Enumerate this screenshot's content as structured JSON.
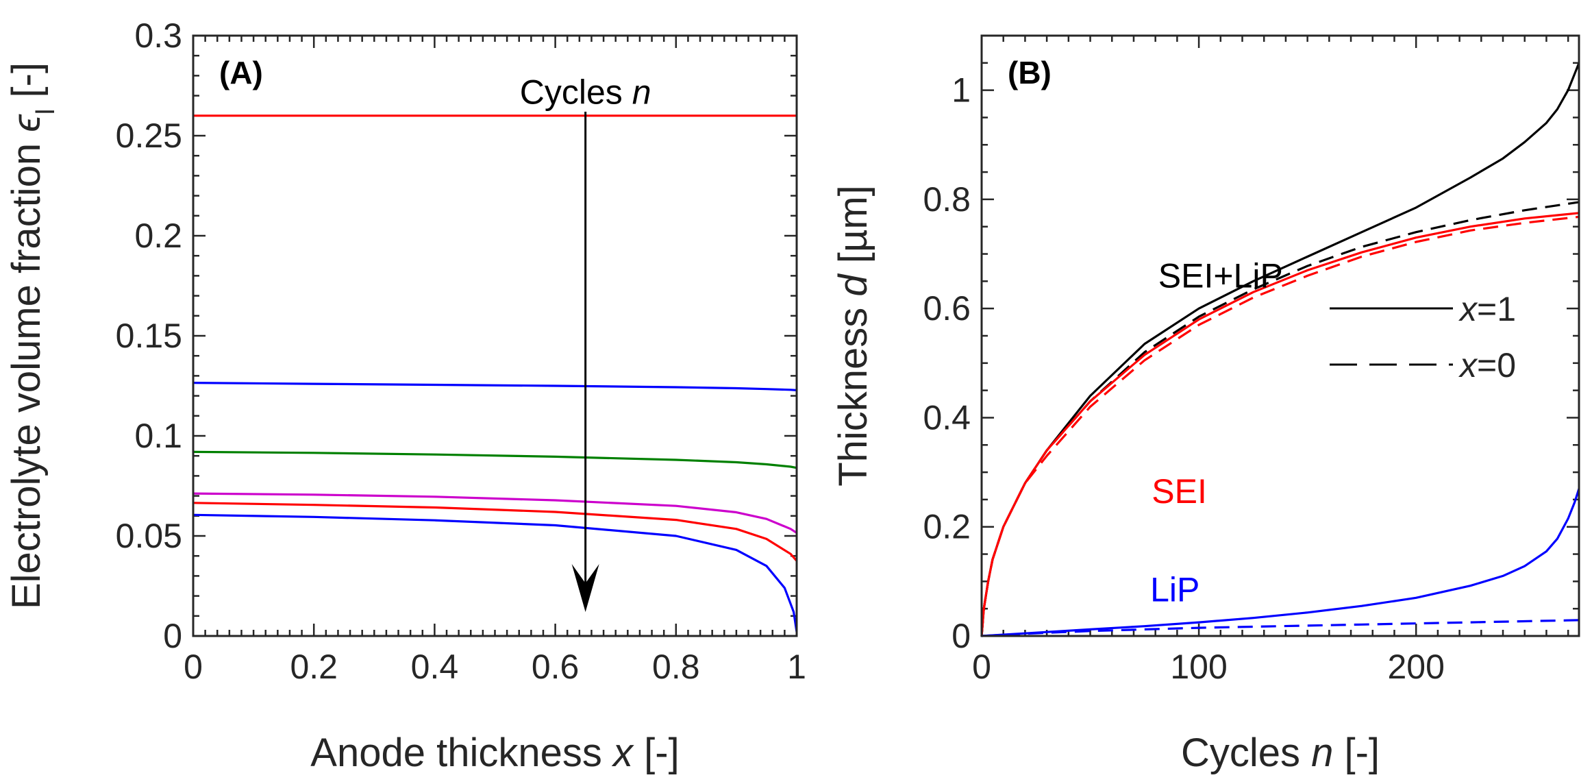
{
  "chart_data": [
    {
      "type": "line",
      "panel": "(A)",
      "xlabel_main": "Anode thickness",
      "xlabel_var": "x",
      "xlabel_unit": "[-]",
      "ylabel_main": "Electrolyte volume fraction",
      "ylabel_var": "ϵ",
      "ylabel_sub": "l",
      "ylabel_unit": "[-]",
      "xlim": [
        0,
        1
      ],
      "ylim": [
        0,
        0.3
      ],
      "xticks": [
        0,
        0.2,
        0.4,
        0.6,
        0.8,
        1
      ],
      "xtick_labels": [
        "0",
        "0.2",
        "0.4",
        "0.6",
        "0.8",
        "1"
      ],
      "yticks": [
        0,
        0.05,
        0.1,
        0.15,
        0.2,
        0.25,
        0.3
      ],
      "ytick_labels": [
        "0",
        "0.05",
        "0.1",
        "0.15",
        "0.2",
        "0.25",
        "0.3"
      ],
      "annotation": {
        "text": "Cycles",
        "var": "n",
        "arrow_x": 0.65,
        "arrow_from_y": 0.262,
        "arrow_to_y": 0.012,
        "label_x": 0.65,
        "label_y": 0.27
      },
      "series": [
        {
          "name": "curve-1",
          "color": "#ff0000",
          "x": [
            0,
            0.2,
            0.4,
            0.6,
            0.8,
            0.9,
            0.95,
            0.99,
            1.0
          ],
          "y": [
            0.26,
            0.26,
            0.26,
            0.26,
            0.26,
            0.26,
            0.26,
            0.26,
            0.26
          ]
        },
        {
          "name": "curve-2",
          "color": "#0000ff",
          "x": [
            0,
            0.2,
            0.4,
            0.6,
            0.8,
            0.9,
            0.95,
            0.99,
            1.0
          ],
          "y": [
            0.1265,
            0.126,
            0.1255,
            0.125,
            0.1243,
            0.1238,
            0.1234,
            0.123,
            0.1228
          ]
        },
        {
          "name": "curve-3",
          "color": "#008000",
          "x": [
            0,
            0.2,
            0.4,
            0.6,
            0.8,
            0.9,
            0.95,
            0.99,
            1.0
          ],
          "y": [
            0.092,
            0.0915,
            0.0907,
            0.0896,
            0.088,
            0.0868,
            0.0858,
            0.0846,
            0.084
          ]
        },
        {
          "name": "curve-4",
          "color": "#cc00cc",
          "x": [
            0,
            0.2,
            0.4,
            0.6,
            0.8,
            0.9,
            0.95,
            0.99,
            1.0
          ],
          "y": [
            0.0712,
            0.0706,
            0.0696,
            0.0678,
            0.065,
            0.0618,
            0.0585,
            0.0535,
            0.0515
          ]
        },
        {
          "name": "curve-5",
          "color": "#ff0000",
          "x": [
            0,
            0.2,
            0.4,
            0.6,
            0.8,
            0.9,
            0.95,
            0.99,
            1.0
          ],
          "y": [
            0.0665,
            0.0655,
            0.0642,
            0.062,
            0.058,
            0.0535,
            0.0485,
            0.041,
            0.0375
          ]
        },
        {
          "name": "curve-6",
          "color": "#0000ff",
          "x": [
            0,
            0.2,
            0.4,
            0.6,
            0.8,
            0.9,
            0.95,
            0.98,
            0.995,
            1.0
          ],
          "y": [
            0.0605,
            0.0595,
            0.0578,
            0.0553,
            0.05,
            0.043,
            0.035,
            0.024,
            0.012,
            0.002
          ]
        }
      ]
    },
    {
      "type": "line",
      "panel": "(B)",
      "xlabel_main": "Cycles",
      "xlabel_var": "n",
      "xlabel_unit": "[-]",
      "ylabel_main": "Thickness",
      "ylabel_var": "d",
      "ylabel_unit": "[µm]",
      "xlim": [
        0,
        275
      ],
      "ylim": [
        0,
        1.1
      ],
      "xticks": [
        0,
        100,
        200
      ],
      "xtick_labels": [
        "0",
        "100",
        "200"
      ],
      "yticks": [
        0,
        0.2,
        0.4,
        0.6,
        0.8,
        1
      ],
      "ytick_labels": [
        "0",
        "0.2",
        "0.4",
        "0.6",
        "0.8",
        "1"
      ],
      "annotations": [
        {
          "text": "SEI+LiP",
          "color": "#000000",
          "x": 110,
          "y": 0.66
        },
        {
          "text": "SEI",
          "color": "#ff0000",
          "x": 91,
          "y": 0.265
        },
        {
          "text": "LiP",
          "color": "#0000ff",
          "x": 89,
          "y": 0.085
        }
      ],
      "legend": {
        "placement": "right",
        "entries": [
          {
            "line_style": "solid",
            "var": "x",
            "value": "=1"
          },
          {
            "line_style": "dashed",
            "var": "x",
            "value": "=0"
          }
        ]
      },
      "series": [
        {
          "name": "SEI+LiP x=1",
          "color": "#000000",
          "style": "solid",
          "x": [
            0,
            1,
            3,
            5,
            10,
            20,
            30,
            50,
            75,
            100,
            125,
            150,
            175,
            200,
            225,
            240,
            250,
            260,
            265,
            270,
            273,
            275
          ],
          "y": [
            0,
            0.05,
            0.1,
            0.14,
            0.2,
            0.28,
            0.34,
            0.44,
            0.535,
            0.6,
            0.65,
            0.695,
            0.74,
            0.785,
            0.84,
            0.875,
            0.905,
            0.94,
            0.965,
            1.0,
            1.03,
            1.05
          ]
        },
        {
          "name": "SEI+LiP x=0",
          "color": "#000000",
          "style": "dashed",
          "x": [
            0,
            1,
            3,
            5,
            10,
            20,
            30,
            50,
            75,
            100,
            125,
            150,
            175,
            200,
            225,
            250,
            275
          ],
          "y": [
            0,
            0.05,
            0.1,
            0.14,
            0.2,
            0.28,
            0.34,
            0.43,
            0.52,
            0.585,
            0.635,
            0.678,
            0.713,
            0.74,
            0.762,
            0.78,
            0.795
          ]
        },
        {
          "name": "SEI x=1",
          "color": "#ff0000",
          "style": "solid",
          "x": [
            0,
            1,
            3,
            5,
            10,
            20,
            30,
            50,
            75,
            100,
            125,
            150,
            175,
            200,
            225,
            250,
            275
          ],
          "y": [
            0,
            0.05,
            0.1,
            0.14,
            0.2,
            0.28,
            0.34,
            0.43,
            0.515,
            0.58,
            0.63,
            0.67,
            0.703,
            0.73,
            0.75,
            0.765,
            0.775
          ]
        },
        {
          "name": "SEI x=0",
          "color": "#ff0000",
          "style": "dashed",
          "x": [
            0,
            1,
            3,
            5,
            10,
            20,
            30,
            50,
            75,
            100,
            125,
            150,
            175,
            200,
            225,
            250,
            275
          ],
          "y": [
            0,
            0.05,
            0.1,
            0.14,
            0.2,
            0.28,
            0.33,
            0.42,
            0.505,
            0.57,
            0.62,
            0.66,
            0.695,
            0.722,
            0.743,
            0.757,
            0.768
          ]
        },
        {
          "name": "LiP x=1",
          "color": "#0000ff",
          "style": "solid",
          "x": [
            0,
            25,
            50,
            75,
            100,
            125,
            150,
            175,
            200,
            225,
            240,
            250,
            260,
            265,
            270,
            273,
            275
          ],
          "y": [
            0,
            0.006,
            0.012,
            0.018,
            0.025,
            0.033,
            0.043,
            0.055,
            0.07,
            0.092,
            0.11,
            0.128,
            0.155,
            0.178,
            0.215,
            0.245,
            0.27
          ]
        },
        {
          "name": "LiP x=0",
          "color": "#0000ff",
          "style": "dashed",
          "x": [
            0,
            25,
            50,
            75,
            100,
            125,
            150,
            175,
            200,
            225,
            250,
            275
          ],
          "y": [
            0,
            0.005,
            0.009,
            0.012,
            0.015,
            0.017,
            0.019,
            0.021,
            0.023,
            0.025,
            0.027,
            0.029
          ]
        }
      ]
    }
  ]
}
